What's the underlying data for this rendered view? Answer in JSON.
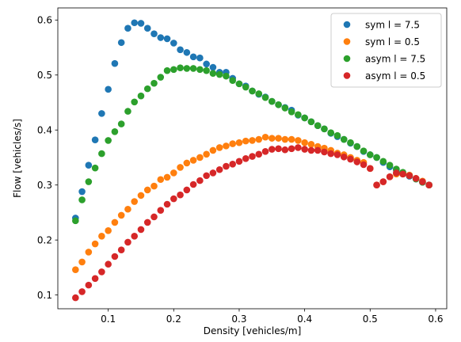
{
  "chart_data": {
    "type": "scatter",
    "xlabel": "Density [vehicles/m]",
    "ylabel": "Flow [vehicles/s]",
    "xlim": [
      0.023,
      0.617
    ],
    "ylim": [
      0.075,
      0.622
    ],
    "xticks": [
      0.1,
      0.2,
      0.3,
      0.4,
      0.5,
      0.6
    ],
    "yticks": [
      0.1,
      0.2,
      0.3,
      0.4,
      0.5,
      0.6
    ],
    "xtick_labels": [
      "0.1",
      "0.2",
      "0.3",
      "0.4",
      "0.5",
      "0.6"
    ],
    "ytick_labels": [
      "0.1",
      "0.2",
      "0.3",
      "0.4",
      "0.5",
      "0.6"
    ],
    "grid": false,
    "legend_position": "top-right",
    "x": [
      0.05,
      0.06,
      0.07,
      0.08,
      0.09,
      0.1,
      0.11,
      0.12,
      0.13,
      0.14,
      0.15,
      0.16,
      0.17,
      0.18,
      0.19,
      0.2,
      0.21,
      0.22,
      0.23,
      0.24,
      0.25,
      0.26,
      0.27,
      0.28,
      0.29,
      0.3,
      0.31,
      0.32,
      0.33,
      0.34,
      0.35,
      0.36,
      0.37,
      0.38,
      0.39,
      0.4,
      0.41,
      0.42,
      0.43,
      0.44,
      0.45,
      0.46,
      0.47,
      0.48,
      0.49,
      0.5,
      0.51,
      0.52,
      0.53,
      0.54,
      0.55,
      0.56,
      0.57,
      0.58,
      0.59
    ],
    "series": [
      {
        "name": "sym l = 7.5",
        "color": "#1f77b4",
        "values": [
          0.24,
          0.288,
          0.336,
          0.382,
          0.43,
          0.474,
          0.521,
          0.559,
          0.585,
          0.595,
          0.594,
          0.585,
          0.575,
          0.568,
          0.566,
          0.558,
          0.546,
          0.541,
          0.533,
          0.531,
          0.52,
          0.514,
          0.505,
          0.505,
          0.494,
          0.484,
          0.48,
          0.471,
          0.465,
          0.46,
          0.452,
          0.446,
          0.441,
          0.436,
          0.427,
          0.422,
          0.415,
          0.408,
          0.402,
          0.394,
          0.388,
          0.383,
          0.376,
          0.37,
          0.361,
          0.355,
          0.35,
          0.341,
          0.333,
          0.327,
          0.32,
          0.316,
          0.311,
          0.305,
          0.3
        ]
      },
      {
        "name": "sym l = 0.5",
        "color": "#ff7f0e",
        "values": [
          0.146,
          0.16,
          0.178,
          0.193,
          0.207,
          0.217,
          0.232,
          0.245,
          0.256,
          0.27,
          0.281,
          0.291,
          0.298,
          0.31,
          0.314,
          0.322,
          0.332,
          0.34,
          0.345,
          0.35,
          0.356,
          0.363,
          0.368,
          0.371,
          0.375,
          0.377,
          0.38,
          0.381,
          0.383,
          0.387,
          0.385,
          0.385,
          0.383,
          0.383,
          0.381,
          0.377,
          0.374,
          0.37,
          0.367,
          0.363,
          0.358,
          0.355,
          0.35,
          0.345,
          0.341,
          0.33,
          0.3,
          0.306,
          0.315,
          0.32,
          0.32,
          0.318,
          0.312,
          0.307,
          0.3
        ]
      },
      {
        "name": "asym l = 7.5",
        "color": "#2ca02c",
        "values": [
          0.235,
          0.273,
          0.306,
          0.331,
          0.357,
          0.381,
          0.397,
          0.411,
          0.434,
          0.451,
          0.462,
          0.475,
          0.485,
          0.496,
          0.508,
          0.51,
          0.513,
          0.512,
          0.512,
          0.51,
          0.508,
          0.503,
          0.501,
          0.498,
          0.49,
          0.484,
          0.478,
          0.471,
          0.466,
          0.459,
          0.452,
          0.446,
          0.44,
          0.433,
          0.428,
          0.422,
          0.415,
          0.408,
          0.402,
          0.395,
          0.39,
          0.383,
          0.377,
          0.37,
          0.362,
          0.355,
          0.35,
          0.343,
          0.336,
          0.329,
          0.323,
          0.317,
          0.311,
          0.305,
          0.3
        ]
      },
      {
        "name": "asym l = 0.5",
        "color": "#d62728",
        "values": [
          0.095,
          0.106,
          0.118,
          0.13,
          0.142,
          0.156,
          0.17,
          0.182,
          0.196,
          0.207,
          0.219,
          0.232,
          0.242,
          0.254,
          0.265,
          0.275,
          0.282,
          0.291,
          0.301,
          0.308,
          0.317,
          0.322,
          0.328,
          0.334,
          0.338,
          0.343,
          0.348,
          0.352,
          0.356,
          0.361,
          0.365,
          0.366,
          0.364,
          0.366,
          0.368,
          0.365,
          0.363,
          0.363,
          0.36,
          0.357,
          0.355,
          0.351,
          0.347,
          0.342,
          0.337,
          0.33,
          0.3,
          0.306,
          0.315,
          0.322,
          0.32,
          0.317,
          0.312,
          0.306,
          0.3
        ]
      }
    ]
  }
}
